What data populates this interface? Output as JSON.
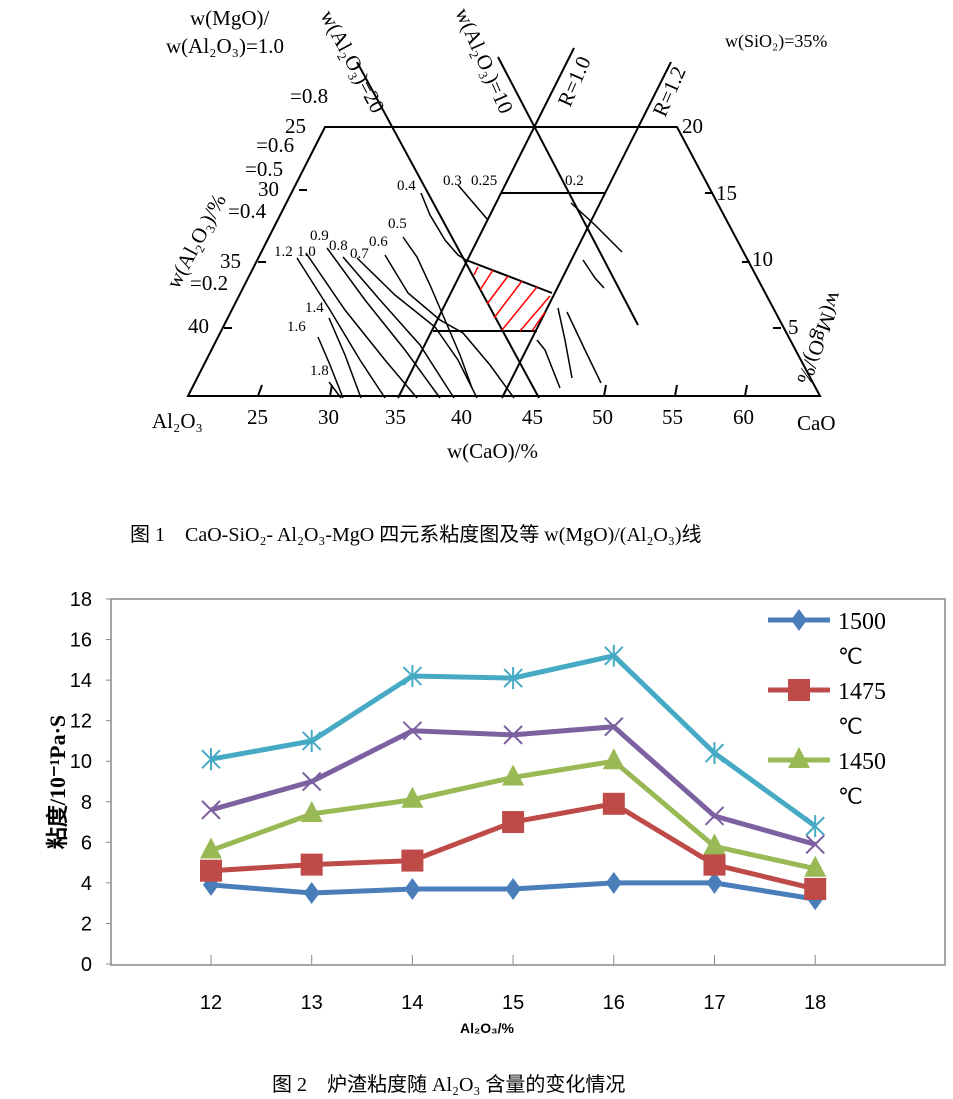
{
  "figure1": {
    "caption": "图 1　CaO-SiO₂- Al₂O₃-MgO 四元系粘度图及等 w(MgO)/(Al₂O₃)线",
    "condition": "w(SiO₂)=35%",
    "ratio_label_top": "w(MgO)/",
    "ratio_label_bottom": "w(Al₂O₃)=1.0",
    "ratio_labels": [
      "=0.8",
      "=0.6",
      "=0.5",
      "=0.4",
      "=0.2"
    ],
    "line_labels": {
      "al20": "w(Al₂O₃)=20",
      "al10": "w(Al₂O₃)=10",
      "r10": "R=1.0",
      "r12": "R=1.2"
    },
    "left_axis_title": "w(Al₂O₃)/%",
    "left_ticks": [
      "25",
      "30",
      "35",
      "40"
    ],
    "right_axis_title": "w(MgO)/%",
    "right_ticks": [
      "20",
      "15",
      "10",
      "5"
    ],
    "bottom_axis_title": "w(CaO)/%",
    "bottom_ticks": [
      "25",
      "30",
      "35",
      "40",
      "45",
      "50",
      "55",
      "60"
    ],
    "corner_left": "Al₂O₃",
    "corner_right": "CaO",
    "viscosity_labels": [
      "0.4",
      "0.3",
      "0.25",
      "0.2",
      "0.5",
      "0.9",
      "0.8",
      "0.6",
      "0.7",
      "1.2",
      "1.0",
      "1.4",
      "1.6",
      "1.8"
    ],
    "hatch_color": "#ff0000"
  },
  "figure2": {
    "caption": "图 2　炉渣粘度随 Al₂O₃ 含量的变化情况"
  },
  "chart_data": {
    "type": "line",
    "xlabel": "Al₂O₃/%",
    "ylabel": "粘度/10⁻¹Pa·S",
    "categories": [
      "12",
      "13",
      "14",
      "15",
      "16",
      "17",
      "18"
    ],
    "ylim": [
      0,
      18
    ],
    "yticks": [
      "0",
      "2",
      "4",
      "6",
      "8",
      "10",
      "12",
      "14",
      "16",
      "18"
    ],
    "grid": false,
    "legend": "right",
    "series": [
      {
        "name": "1500 ℃",
        "legend_line1": "1500",
        "legend_line2": "℃",
        "color": "#4a7ebb",
        "marker": "diamond",
        "values": [
          3.9,
          3.5,
          3.7,
          3.7,
          4.0,
          4.0,
          3.2
        ]
      },
      {
        "name": "1475 ℃",
        "legend_line1": "1475",
        "legend_line2": "℃",
        "color": "#be4b48",
        "marker": "square",
        "values": [
          4.6,
          4.9,
          5.1,
          7.0,
          7.9,
          4.9,
          3.7
        ]
      },
      {
        "name": "1450 ℃",
        "legend_line1": "1450",
        "legend_line2": "℃",
        "color": "#98b954",
        "marker": "triangle",
        "values": [
          5.6,
          7.4,
          8.1,
          9.2,
          10.0,
          5.8,
          4.7
        ]
      },
      {
        "color": "#7d60a0",
        "marker": "x",
        "values": [
          7.6,
          9.0,
          11.5,
          11.3,
          11.7,
          7.3,
          5.9
        ]
      },
      {
        "color": "#46aac5",
        "marker": "star",
        "values": [
          10.1,
          11.0,
          14.2,
          14.1,
          15.2,
          10.4,
          6.8
        ]
      }
    ]
  }
}
